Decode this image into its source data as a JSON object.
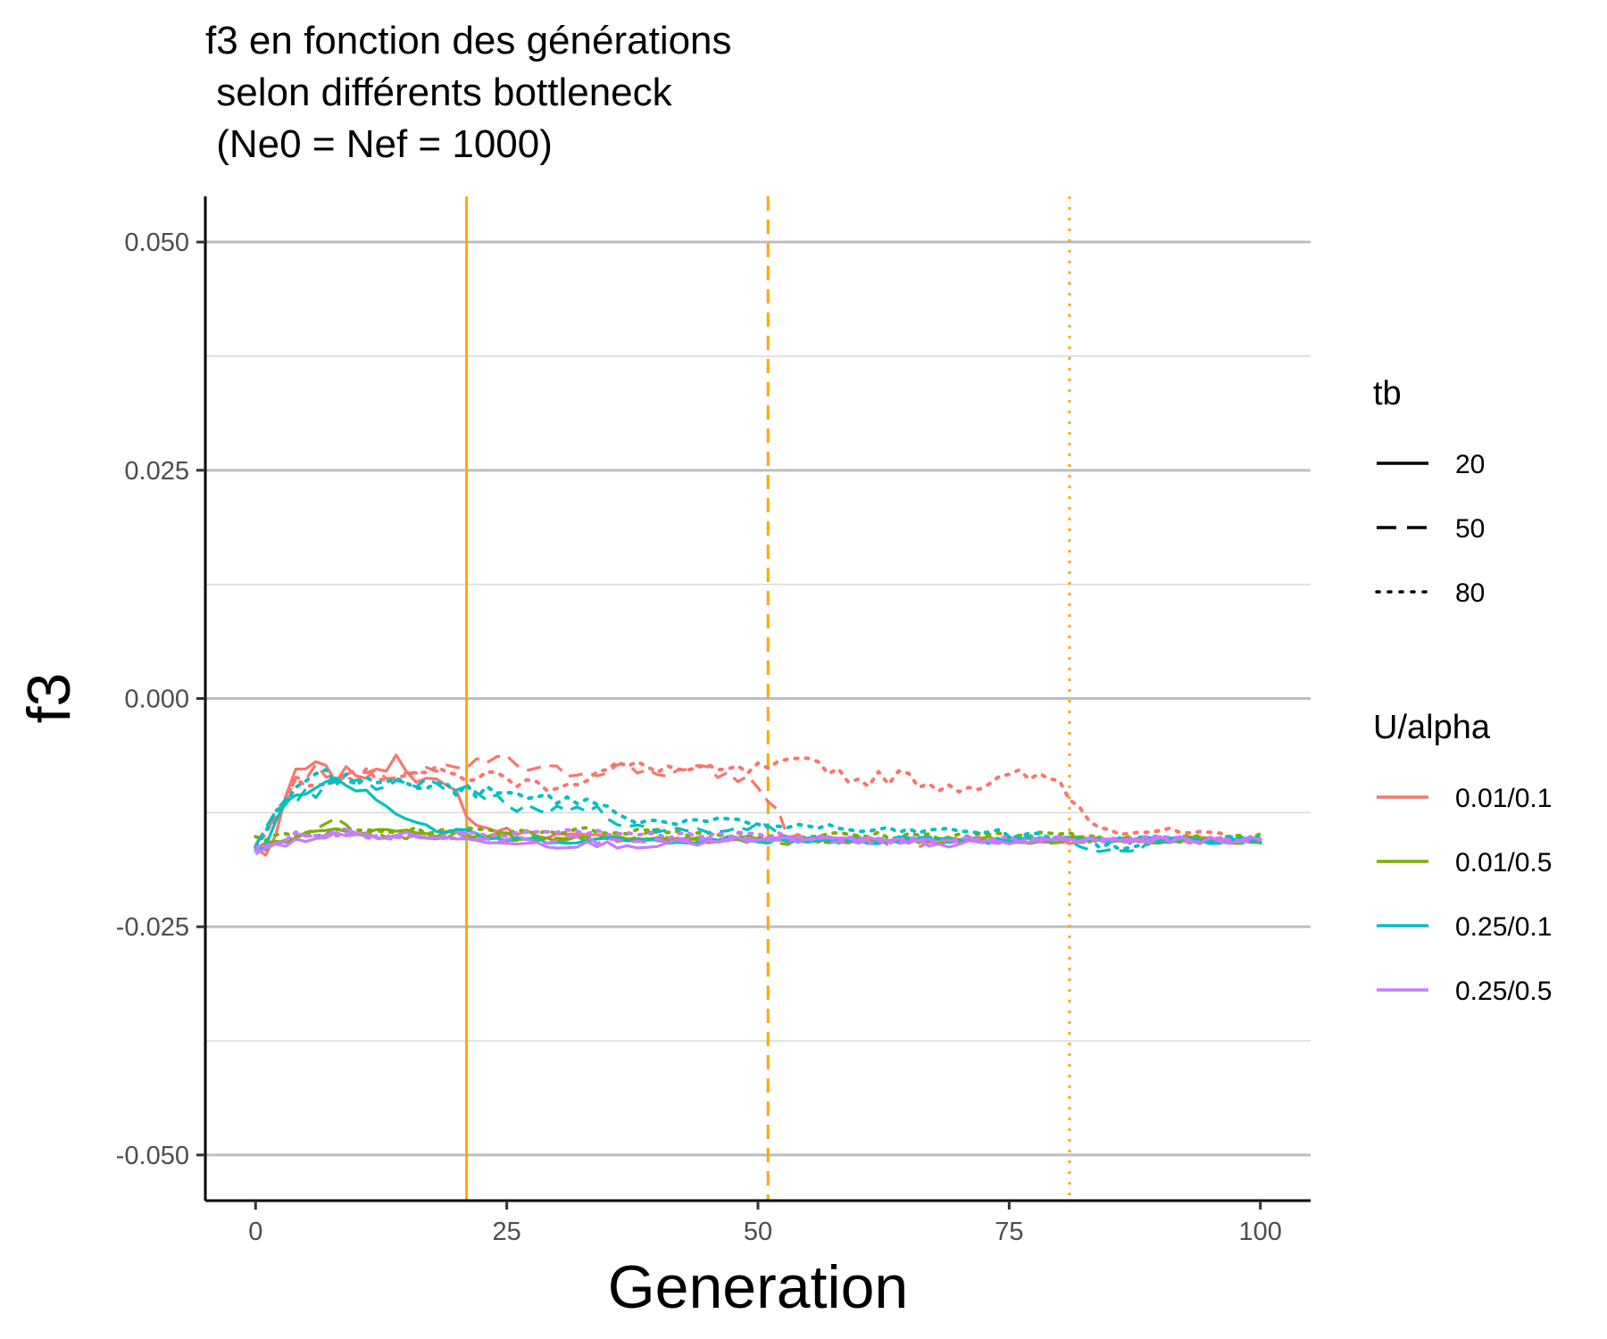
{
  "chart_data": {
    "type": "line",
    "title_lines": [
      "f3 en fonction des générations",
      " selon différents bottleneck",
      " (Ne0 = Nef = 1000)"
    ],
    "xlabel": "Generation",
    "ylabel": "f3",
    "xlim": [
      -5,
      105
    ],
    "ylim": [
      -0.055,
      0.055
    ],
    "x_ticks": [
      0,
      25,
      50,
      75,
      100
    ],
    "x_tick_labels": [
      "0",
      "25",
      "50",
      "75",
      "100"
    ],
    "y_ticks": [
      0.05,
      0.025,
      0,
      -0.025,
      -0.05
    ],
    "y_tick_labels": [
      "0.050",
      "0.025",
      "0.000",
      "-0.025",
      "-0.050"
    ],
    "y_minor_ticks": [
      0.0375,
      0.0125,
      -0.0125,
      -0.0375
    ],
    "grid": true,
    "legend_placement": "right",
    "bottleneck_lines": [
      {
        "x": 21,
        "linetype": "solid",
        "color": "#FFA500"
      },
      {
        "x": 51,
        "linetype": "dashed",
        "color": "#FFA500"
      },
      {
        "x": 81,
        "linetype": "dotted",
        "color": "#FFA500"
      }
    ],
    "legends": {
      "tb": {
        "title": "tb",
        "entries": [
          {
            "label": "20",
            "linetype": "solid"
          },
          {
            "label": "50",
            "linetype": "dashed"
          },
          {
            "label": "80",
            "linetype": "dotted"
          }
        ]
      },
      "ualpha": {
        "title": "U/alpha",
        "entries": [
          {
            "label": "0.01/0.1",
            "color": "#F8766D"
          },
          {
            "label": "0.01/0.5",
            "color": "#7CAE00"
          },
          {
            "label": "0.25/0.1",
            "color": "#00BFC4"
          },
          {
            "label": "0.25/0.5",
            "color": "#C77CFF"
          }
        ]
      }
    },
    "series": [
      {
        "group": "0.01/0.1",
        "tb": "20",
        "color": "#F8766D",
        "linetype": "solid",
        "anchors": [
          [
            0,
            -0.0165
          ],
          [
            1,
            -0.017
          ],
          [
            2,
            -0.015
          ],
          [
            4,
            -0.008
          ],
          [
            6,
            -0.0075
          ],
          [
            8,
            -0.0085
          ],
          [
            10,
            -0.008
          ],
          [
            12,
            -0.0085
          ],
          [
            14,
            -0.006
          ],
          [
            16,
            -0.0085
          ],
          [
            18,
            -0.0095
          ],
          [
            20,
            -0.0105
          ],
          [
            22,
            -0.014
          ],
          [
            25,
            -0.0145
          ],
          [
            30,
            -0.015
          ],
          [
            40,
            -0.0155
          ],
          [
            50,
            -0.0155
          ],
          [
            60,
            -0.0155
          ],
          [
            70,
            -0.0155
          ],
          [
            80,
            -0.0155
          ],
          [
            90,
            -0.0155
          ],
          [
            100,
            -0.0155
          ]
        ]
      },
      {
        "group": "0.01/0.1",
        "tb": "50",
        "color": "#F8766D",
        "linetype": "dashed",
        "anchors": [
          [
            0,
            -0.016
          ],
          [
            2,
            -0.013
          ],
          [
            4,
            -0.0085
          ],
          [
            6,
            -0.008
          ],
          [
            8,
            -0.0085
          ],
          [
            12,
            -0.0085
          ],
          [
            16,
            -0.008
          ],
          [
            20,
            -0.008
          ],
          [
            24,
            -0.0065
          ],
          [
            28,
            -0.008
          ],
          [
            32,
            -0.008
          ],
          [
            36,
            -0.0075
          ],
          [
            40,
            -0.008
          ],
          [
            44,
            -0.008
          ],
          [
            48,
            -0.0085
          ],
          [
            50,
            -0.0095
          ],
          [
            52,
            -0.0125
          ],
          [
            53,
            -0.015
          ],
          [
            56,
            -0.0155
          ],
          [
            60,
            -0.0155
          ],
          [
            66,
            -0.016
          ],
          [
            70,
            -0.0155
          ],
          [
            80,
            -0.0155
          ],
          [
            90,
            -0.0155
          ],
          [
            100,
            -0.0155
          ]
        ]
      },
      {
        "group": "0.01/0.1",
        "tb": "80",
        "color": "#F8766D",
        "linetype": "dotted",
        "anchors": [
          [
            0,
            -0.016
          ],
          [
            2,
            -0.013
          ],
          [
            4,
            -0.009
          ],
          [
            8,
            -0.0085
          ],
          [
            12,
            -0.0085
          ],
          [
            16,
            -0.008
          ],
          [
            20,
            -0.0085
          ],
          [
            24,
            -0.0085
          ],
          [
            28,
            -0.0095
          ],
          [
            32,
            -0.009
          ],
          [
            36,
            -0.0075
          ],
          [
            40,
            -0.0075
          ],
          [
            44,
            -0.008
          ],
          [
            48,
            -0.008
          ],
          [
            52,
            -0.0075
          ],
          [
            56,
            -0.007
          ],
          [
            60,
            -0.009
          ],
          [
            64,
            -0.0085
          ],
          [
            68,
            -0.0095
          ],
          [
            72,
            -0.0095
          ],
          [
            76,
            -0.0085
          ],
          [
            80,
            -0.009
          ],
          [
            81,
            -0.0105
          ],
          [
            83,
            -0.0135
          ],
          [
            86,
            -0.0145
          ],
          [
            90,
            -0.0145
          ],
          [
            95,
            -0.015
          ],
          [
            100,
            -0.0155
          ]
        ]
      },
      {
        "group": "0.01/0.5",
        "tb": "20",
        "color": "#7CAE00",
        "linetype": "solid",
        "anchors": [
          [
            0,
            -0.0165
          ],
          [
            4,
            -0.015
          ],
          [
            8,
            -0.0145
          ],
          [
            12,
            -0.0145
          ],
          [
            16,
            -0.0145
          ],
          [
            20,
            -0.015
          ],
          [
            25,
            -0.015
          ],
          [
            30,
            -0.0155
          ],
          [
            40,
            -0.0155
          ],
          [
            50,
            -0.0155
          ],
          [
            60,
            -0.0155
          ],
          [
            70,
            -0.0155
          ],
          [
            80,
            -0.0155
          ],
          [
            90,
            -0.0155
          ],
          [
            100,
            -0.0155
          ]
        ]
      },
      {
        "group": "0.01/0.5",
        "tb": "50",
        "color": "#7CAE00",
        "linetype": "dashed",
        "anchors": [
          [
            0,
            -0.0165
          ],
          [
            4,
            -0.0155
          ],
          [
            8,
            -0.0125
          ],
          [
            10,
            -0.0145
          ],
          [
            14,
            -0.015
          ],
          [
            20,
            -0.015
          ],
          [
            30,
            -0.0155
          ],
          [
            40,
            -0.015
          ],
          [
            46,
            -0.0155
          ],
          [
            50,
            -0.016
          ],
          [
            55,
            -0.0155
          ],
          [
            60,
            -0.0155
          ],
          [
            70,
            -0.0155
          ],
          [
            80,
            -0.0155
          ],
          [
            90,
            -0.0155
          ],
          [
            100,
            -0.0155
          ]
        ]
      },
      {
        "group": "0.01/0.5",
        "tb": "80",
        "color": "#7CAE00",
        "linetype": "dotted",
        "anchors": [
          [
            0,
            -0.0155
          ],
          [
            4,
            -0.015
          ],
          [
            10,
            -0.0145
          ],
          [
            20,
            -0.0145
          ],
          [
            30,
            -0.0145
          ],
          [
            40,
            -0.0145
          ],
          [
            50,
            -0.015
          ],
          [
            60,
            -0.015
          ],
          [
            70,
            -0.015
          ],
          [
            80,
            -0.015
          ],
          [
            90,
            -0.0155
          ],
          [
            100,
            -0.015
          ]
        ]
      },
      {
        "group": "0.25/0.1",
        "tb": "20",
        "color": "#00BFC4",
        "linetype": "solid",
        "anchors": [
          [
            0,
            -0.0165
          ],
          [
            1,
            -0.016
          ],
          [
            2,
            -0.0135
          ],
          [
            3,
            -0.011
          ],
          [
            4,
            -0.01
          ],
          [
            6,
            -0.0095
          ],
          [
            8,
            -0.0085
          ],
          [
            10,
            -0.0095
          ],
          [
            12,
            -0.0105
          ],
          [
            14,
            -0.0125
          ],
          [
            16,
            -0.0135
          ],
          [
            18,
            -0.0145
          ],
          [
            20,
            -0.0145
          ],
          [
            22,
            -0.015
          ],
          [
            25,
            -0.0155
          ],
          [
            30,
            -0.0155
          ],
          [
            40,
            -0.0155
          ],
          [
            50,
            -0.0155
          ],
          [
            60,
            -0.0155
          ],
          [
            70,
            -0.0155
          ],
          [
            80,
            -0.0155
          ],
          [
            90,
            -0.0155
          ],
          [
            100,
            -0.0155
          ]
        ]
      },
      {
        "group": "0.25/0.1",
        "tb": "50",
        "color": "#00BFC4",
        "linetype": "dashed",
        "anchors": [
          [
            0,
            -0.0165
          ],
          [
            2,
            -0.0125
          ],
          [
            4,
            -0.011
          ],
          [
            8,
            -0.0095
          ],
          [
            12,
            -0.0095
          ],
          [
            16,
            -0.0095
          ],
          [
            20,
            -0.0095
          ],
          [
            24,
            -0.011
          ],
          [
            28,
            -0.0125
          ],
          [
            30,
            -0.0115
          ],
          [
            32,
            -0.0125
          ],
          [
            34,
            -0.0115
          ],
          [
            36,
            -0.0135
          ],
          [
            40,
            -0.0145
          ],
          [
            44,
            -0.0145
          ],
          [
            48,
            -0.014
          ],
          [
            50,
            -0.014
          ],
          [
            52,
            -0.0145
          ],
          [
            54,
            -0.0155
          ],
          [
            60,
            -0.0155
          ],
          [
            70,
            -0.0155
          ],
          [
            80,
            -0.0155
          ],
          [
            86,
            -0.017
          ],
          [
            90,
            -0.0155
          ],
          [
            100,
            -0.0155
          ]
        ]
      },
      {
        "group": "0.25/0.1",
        "tb": "80",
        "color": "#00BFC4",
        "linetype": "dotted",
        "anchors": [
          [
            0,
            -0.0165
          ],
          [
            2,
            -0.012
          ],
          [
            4,
            -0.0095
          ],
          [
            6,
            -0.0075
          ],
          [
            8,
            -0.009
          ],
          [
            12,
            -0.009
          ],
          [
            16,
            -0.0095
          ],
          [
            20,
            -0.01
          ],
          [
            24,
            -0.0105
          ],
          [
            28,
            -0.011
          ],
          [
            32,
            -0.011
          ],
          [
            36,
            -0.0125
          ],
          [
            40,
            -0.0135
          ],
          [
            44,
            -0.0135
          ],
          [
            48,
            -0.0135
          ],
          [
            52,
            -0.014
          ],
          [
            56,
            -0.014
          ],
          [
            60,
            -0.0145
          ],
          [
            64,
            -0.0145
          ],
          [
            68,
            -0.0145
          ],
          [
            72,
            -0.0145
          ],
          [
            76,
            -0.015
          ],
          [
            80,
            -0.015
          ],
          [
            82,
            -0.0155
          ],
          [
            86,
            -0.0165
          ],
          [
            90,
            -0.0155
          ],
          [
            100,
            -0.0155
          ]
        ]
      },
      {
        "group": "0.25/0.5",
        "tb": "20",
        "color": "#C77CFF",
        "linetype": "solid",
        "anchors": [
          [
            0,
            -0.017
          ],
          [
            4,
            -0.0155
          ],
          [
            8,
            -0.015
          ],
          [
            12,
            -0.015
          ],
          [
            16,
            -0.015
          ],
          [
            20,
            -0.0155
          ],
          [
            24,
            -0.0155
          ],
          [
            30,
            -0.016
          ],
          [
            40,
            -0.016
          ],
          [
            50,
            -0.0155
          ],
          [
            60,
            -0.0155
          ],
          [
            70,
            -0.016
          ],
          [
            80,
            -0.0155
          ],
          [
            90,
            -0.0155
          ],
          [
            100,
            -0.0155
          ]
        ]
      },
      {
        "group": "0.25/0.5",
        "tb": "50",
        "color": "#C77CFF",
        "linetype": "dashed",
        "anchors": [
          [
            0,
            -0.0165
          ],
          [
            4,
            -0.015
          ],
          [
            8,
            -0.0145
          ],
          [
            12,
            -0.015
          ],
          [
            16,
            -0.015
          ],
          [
            20,
            -0.015
          ],
          [
            26,
            -0.0155
          ],
          [
            30,
            -0.0155
          ],
          [
            40,
            -0.0155
          ],
          [
            50,
            -0.0155
          ],
          [
            60,
            -0.0155
          ],
          [
            70,
            -0.0155
          ],
          [
            80,
            -0.0155
          ],
          [
            90,
            -0.0155
          ],
          [
            100,
            -0.0155
          ]
        ]
      },
      {
        "group": "0.25/0.5",
        "tb": "80",
        "color": "#C77CFF",
        "linetype": "dotted",
        "anchors": [
          [
            0,
            -0.0165
          ],
          [
            4,
            -0.015
          ],
          [
            10,
            -0.015
          ],
          [
            20,
            -0.015
          ],
          [
            30,
            -0.0145
          ],
          [
            40,
            -0.015
          ],
          [
            50,
            -0.015
          ],
          [
            60,
            -0.0155
          ],
          [
            70,
            -0.0155
          ],
          [
            80,
            -0.0155
          ],
          [
            90,
            -0.0155
          ],
          [
            100,
            -0.0155
          ]
        ]
      }
    ]
  }
}
